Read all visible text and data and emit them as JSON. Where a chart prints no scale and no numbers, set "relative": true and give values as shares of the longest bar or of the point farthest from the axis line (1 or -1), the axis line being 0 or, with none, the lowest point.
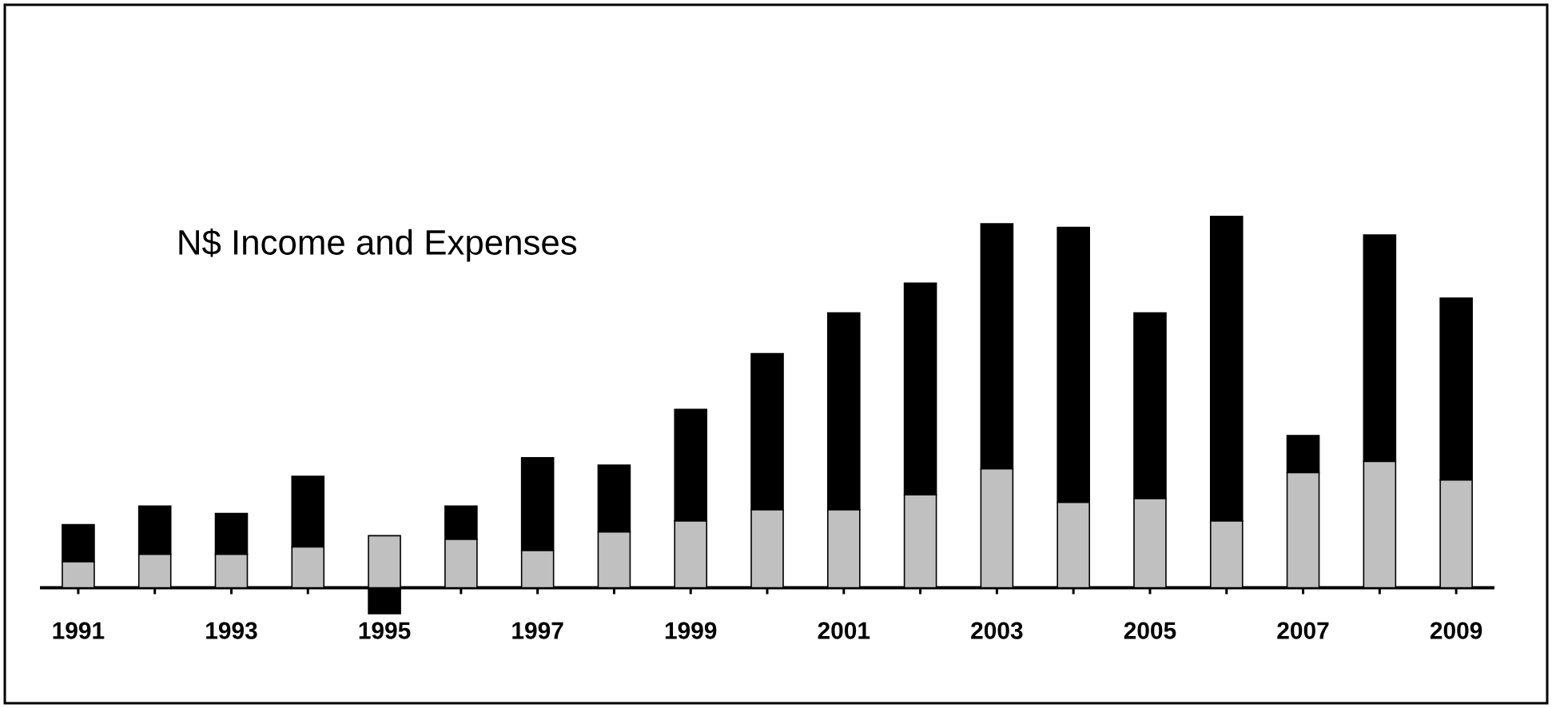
{
  "chart_data": {
    "type": "bar",
    "title": "N$ Income and Expenses",
    "relative": true,
    "stacked": true,
    "categories": [
      "1991",
      null,
      "1993",
      null,
      "1995",
      null,
      "1997",
      null,
      "1999",
      null,
      "2001",
      null,
      "2003",
      null,
      "2005",
      null,
      "2007",
      null,
      "2009"
    ],
    "series": [
      {
        "color": "#c0c0c0",
        "values": [
          0.07,
          0.09,
          0.09,
          0.11,
          0.14,
          0.13,
          0.1,
          0.15,
          0.18,
          0.21,
          0.21,
          0.25,
          0.32,
          0.23,
          0.24,
          0.18,
          0.31,
          0.34,
          0.29
        ]
      },
      {
        "color": "#000000",
        "values": [
          0.1,
          0.13,
          0.11,
          0.19,
          -0.07,
          0.09,
          0.25,
          0.18,
          0.3,
          0.42,
          0.53,
          0.57,
          0.66,
          0.74,
          0.5,
          0.82,
          0.1,
          0.61,
          0.49
        ]
      }
    ]
  }
}
